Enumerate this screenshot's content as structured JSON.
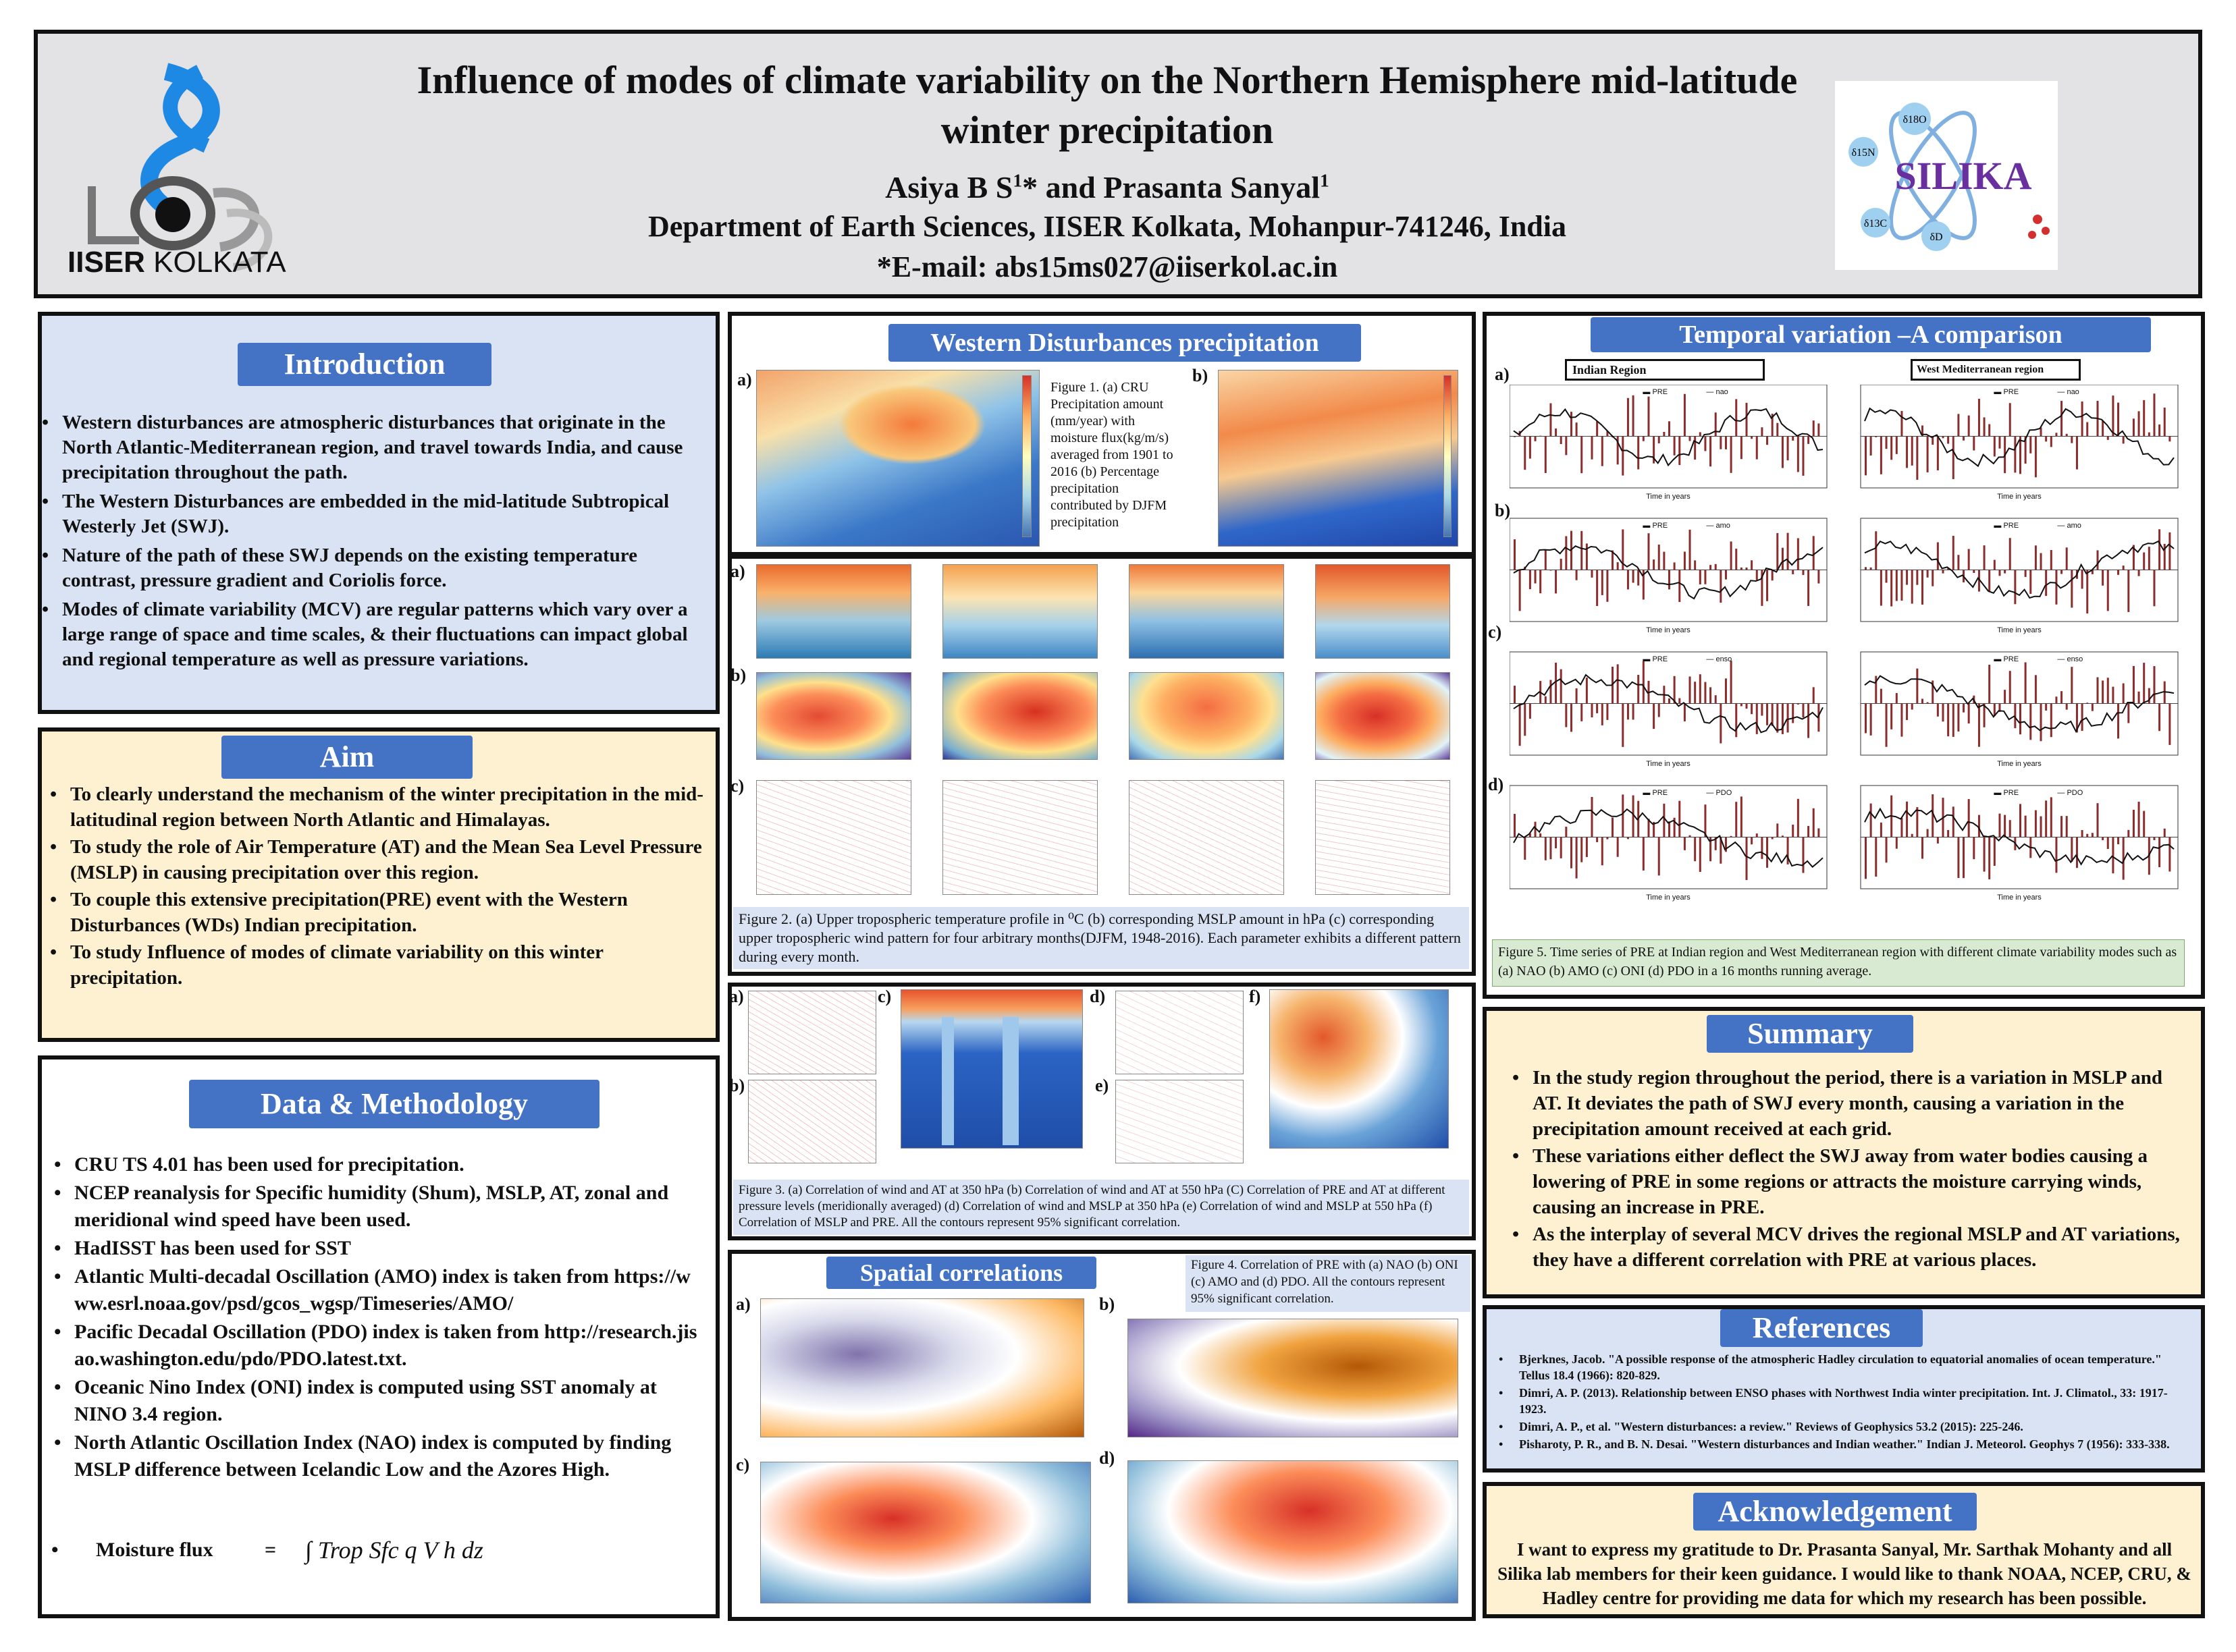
{
  "header": {
    "title": "Influence of modes of climate variability on the Northern Hemisphere mid-latitude winter precipitation",
    "author_1": "Asiya B S",
    "author_1_sup": "1",
    "author_1_mark": "*",
    "author_join": "and",
    "author_2": "Prasanta Sanyal",
    "author_2_sup": "1",
    "department": "Department of Earth Sciences, IISER Kolkata, Mohanpur-741246, India",
    "email": "*E-mail: abs15ms027@iiserkol.ac.in",
    "logo_left_text_bold": "IISER",
    "logo_left_text": "KOLKATA",
    "logo_right_text": "SILIKA",
    "logo_right_isotopes": [
      "δ18O",
      "δ15N",
      "δ13C",
      "δD"
    ]
  },
  "introduction": {
    "title": "Introduction",
    "bullets": [
      "Western disturbances are atmospheric disturbances that originate in the North Atlantic-Mediterranean region, and travel towards India, and cause precipitation throughout the path.",
      "The Western Disturbances are embedded in the mid-latitude Subtropical Westerly Jet (SWJ).",
      "Nature of the path of these SWJ depends on the existing temperature contrast, pressure gradient and Coriolis force.",
      "Modes of climate variability (MCV) are regular patterns which vary over a large range of space and time scales, & their fluctuations can impact global and regional temperature as well as pressure variations."
    ]
  },
  "aim": {
    "title": "Aim",
    "bullets": [
      "To clearly understand the mechanism of the winter precipitation in the mid-latitudinal region between North Atlantic and Himalayas.",
      "To study the role of Air Temperature (AT) and the Mean Sea Level Pressure (MSLP) in causing precipitation over this region.",
      "To couple this  extensive precipitation(PRE) event with the Western Disturbances (WDs)  Indian precipitation.",
      "To study Influence of modes of climate variability on this winter precipitation."
    ]
  },
  "methods": {
    "title": "Data & Methodology",
    "bullets": [
      "CRU TS 4.01 has been used for precipitation.",
      "NCEP reanalysis for Specific humidity (Shum), MSLP, AT, zonal and meridional wind speed have been used.",
      "HadISST has been used for SST",
      "Atlantic Multi-decadal Oscillation (AMO) index is taken from https://www.esrl.noaa.gov/psd/gcos_wgsp/Timeseries/AMO/",
      "Pacific Decadal Oscillation (PDO) index is taken from http://research.jisao.washington.edu/pdo/PDO.latest.txt.",
      "Oceanic Nino Index (ONI) index is computed using SST anomaly at NINO 3.4 region.",
      "North Atlantic Oscillation Index (NAO) index is computed by finding MSLP difference between Icelandic Low and the Azores High."
    ],
    "flux_label": "Moisture flux",
    "flux_eq": "=",
    "flux_formula": "∫ Trop Sfc  q V h  dz"
  },
  "wd_precip": {
    "title": "Western Disturbances precipitation",
    "label_a": "a)",
    "label_b": "b)",
    "fig1_caption": "Figure 1. (a) CRU Precipitation amount (mm/year) with moisture flux(kg/m/s) averaged from 1901 to 2016 (b) Percentage precipitation contributed by DJFM precipitation"
  },
  "fig2": {
    "row_labels": [
      "a)",
      "b)",
      "c)"
    ],
    "caption": "Figure 2. (a) Upper tropospheric temperature profile in ⁰C (b) corresponding MSLP amount in hPa (c) corresponding upper tropospheric wind pattern for four arbitrary months(DJFM, 1948-2016). Each parameter exhibits a different pattern during every month."
  },
  "fig3": {
    "labels": [
      "a)",
      "b)",
      "c)",
      "d)",
      "e)",
      "f)"
    ],
    "caption": "Figure 3. (a) Correlation of wind and AT at 350 hPa (b) Correlation of wind and AT at 550 hPa (C) Correlation of PRE and AT at different pressure levels (meridionally averaged) (d) Correlation of wind and MSLP at 350 hPa (e) Correlation of wind and MSLP at 550 hPa  (f) Correlation of MSLP and PRE. All the contours represent 95% significant correlation."
  },
  "spatial": {
    "title": "Spatial correlations",
    "labels": [
      "a)",
      "b)",
      "c)",
      "d)"
    ],
    "caption": "Figure 4. Correlation of PRE with (a) NAO (b) ONI (c) AMO and (d) PDO. All the contours represent 95% significant correlation."
  },
  "temporal": {
    "title": "Temporal variation –A comparison",
    "region_left": "Indian Region",
    "region_right": "West Mediterranean region",
    "row_labels": [
      "a)",
      "b)",
      "c)",
      "d)"
    ],
    "modes": [
      "nao",
      "amo",
      "enso",
      "PDO"
    ],
    "legend_pre": "PRE",
    "x_label": "Time in years",
    "caption": "Figure 5. Time series of PRE at Indian region and West Mediterranean region with different climate variability modes such as (a) NAO (b) AMO (c) ONI (d) PDO in a 16 months running average."
  },
  "summary": {
    "title": "Summary",
    "bullets": [
      "In the study region throughout the period, there is a variation in MSLP and AT. It deviates the path of SWJ every month, causing a variation in the precipitation amount received at each grid.",
      "These variations either deflect the SWJ away from water bodies causing a lowering of PRE in some regions or attracts the moisture carrying winds, causing an increase in PRE.",
      "As the interplay of several MCV drives the regional MSLP and AT variations, they have a different correlation with PRE at various places."
    ]
  },
  "references": {
    "title": "References",
    "items": [
      "Bjerknes, Jacob. \"A possible response of the atmospheric Hadley circulation to equatorial anomalies of ocean temperature.\" Tellus 18.4 (1966): 820-829.",
      "Dimri, A. P. (2013). Relationship between ENSO phases with Northwest India winter precipitation. Int. J. Climatol., 33: 1917-1923.",
      "Dimri, A. P., et al. \"Western disturbances: a review.\" Reviews of Geophysics 53.2 (2015): 225-246.",
      "Pisharoty, P. R., and B. N. Desai. \"Western disturbances and Indian weather.\" Indian J. Meteorol. Geophys 7 (1956): 333-338."
    ]
  },
  "acknowledgement": {
    "title": "Acknowledgement",
    "text": "I want to express my gratitude to Dr. Prasanta Sanyal, Mr. Sarthak Mohanty and all Silika lab members  for their keen guidance. I would like to thank NOAA, NCEP, CRU, & Hadley centre for providing me data for which my research has been possible."
  },
  "colors": {
    "section_title_bg": "#4472c4",
    "intro_bg": "#dae3f3",
    "aim_bg": "#fdf1d2",
    "pre_bar": "#8b2d2d"
  }
}
